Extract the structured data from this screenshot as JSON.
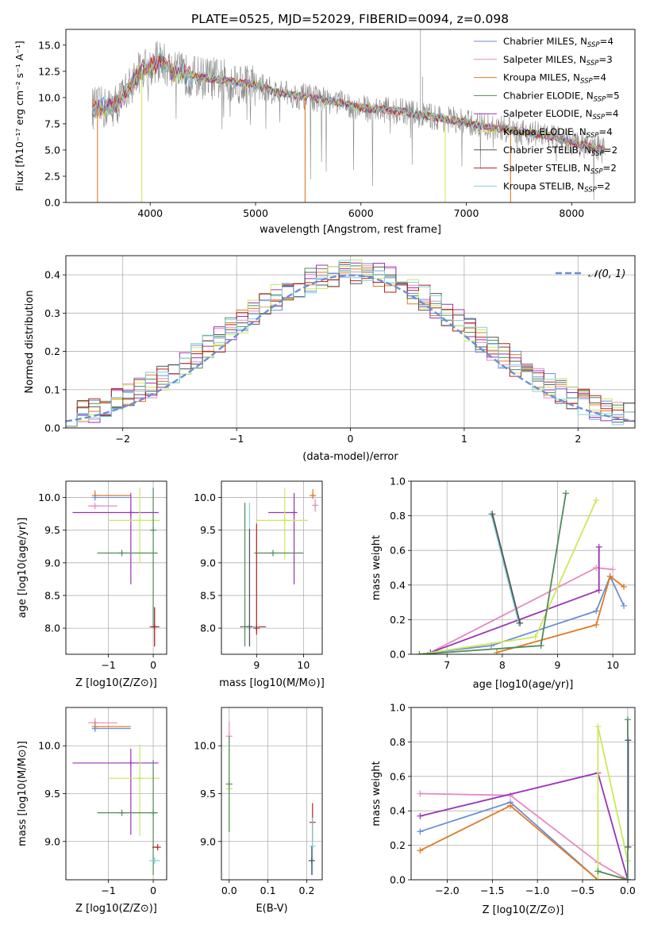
{
  "chart_data": [
    {
      "id": "spectrum",
      "type": "line",
      "title": "PLATE=0525, MJD=52029, FIBERID=0094, z=0.098",
      "xlabel": "wavelength [Angstrom, rest frame]",
      "ylabel": "Flux [fλ10⁻¹⁷ erg cm⁻² s⁻¹ A⁻¹]",
      "xlim": [
        3200,
        8600
      ],
      "ylim": [
        0,
        16.5
      ],
      "xticks": [
        4000,
        5000,
        6000,
        7000,
        8000
      ],
      "yticks": [
        0.0,
        2.5,
        5.0,
        7.5,
        10.0,
        12.5,
        15.0
      ],
      "legend_position": "top-right",
      "legend": [
        {
          "name": "Chabrier MILES",
          "ssp": "4",
          "color": "#6a8fd6"
        },
        {
          "name": "Salpeter MILES",
          "ssp": "3",
          "color": "#e58ac0"
        },
        {
          "name": "Kroupa MILES",
          "ssp": "4",
          "color": "#e07b23"
        },
        {
          "name": "Chabrier ELODIE",
          "ssp": "5",
          "color": "#4f8a5a"
        },
        {
          "name": "Salpeter ELODIE",
          "ssp": "4",
          "color": "#9a32b4"
        },
        {
          "name": "Kroupa ELODIE",
          "ssp": "4",
          "color": "#cde85a"
        },
        {
          "name": "Chabrier STELIB",
          "ssp": "2",
          "color": "#555555"
        },
        {
          "name": "Salpeter STELIB",
          "ssp": "2",
          "color": "#b22222"
        },
        {
          "name": "Kroupa STELIB",
          "ssp": "2",
          "color": "#7fd3dc"
        }
      ],
      "continuum": {
        "x": [
          3450,
          3600,
          3700,
          3800,
          3900,
          4000,
          4100,
          4200,
          4400,
          4600,
          4800,
          5000,
          5200,
          5500,
          5800,
          6000,
          6300,
          6600,
          6900,
          7200,
          7500,
          7800,
          8000,
          8300
        ],
        "y": [
          9.0,
          9.0,
          9.5,
          11.0,
          12.5,
          13.0,
          13.5,
          12.5,
          12.0,
          11.8,
          11.5,
          11.2,
          10.5,
          10.0,
          9.5,
          9.0,
          8.8,
          8.3,
          7.8,
          7.2,
          6.8,
          6.3,
          5.8,
          5.0
        ]
      }
    },
    {
      "id": "residuals",
      "type": "histogram",
      "title": "",
      "xlabel": "(data-model)/error",
      "ylabel": "Normed distribution",
      "xlim": [
        -2.5,
        2.5
      ],
      "ylim": [
        0,
        0.45
      ],
      "xticks": [
        -2,
        -1,
        0,
        1,
        2
      ],
      "yticks": [
        0.0,
        0.1,
        0.2,
        0.3,
        0.4
      ],
      "reference_curve": {
        "name": "𝒩(0, 1)",
        "mean": 0,
        "sigma": 1,
        "color": "#6a8fd6"
      },
      "legend_position": "top-right"
    },
    {
      "id": "age-vs-Z",
      "type": "errorbar",
      "xlabel": "Z [log10(Z/Z⊙)]",
      "ylabel": "age  [log10(age/yr)]",
      "xlim": [
        -1.95,
        0.3
      ],
      "ylim": [
        7.6,
        10.25
      ],
      "xticks": [
        -1,
        0
      ],
      "yticks": [
        8.0,
        8.5,
        9.0,
        9.5,
        10.0
      ],
      "points": [
        {
          "x": -1.3,
          "y": 10.03,
          "xerr": [
            0.0,
            0.8
          ],
          "yerr": [
            0.05,
            0.08
          ],
          "color": "#e07b23"
        },
        {
          "x": -1.3,
          "y": 10.0,
          "xerr": [
            0.0,
            0.8
          ],
          "yerr": [
            0.03,
            0.03
          ],
          "color": "#6a8fd6"
        },
        {
          "x": -1.3,
          "y": 9.87,
          "xerr": [
            0.15,
            0.5
          ],
          "yerr": [
            0.0,
            0.0
          ],
          "color": "#e58ac0"
        },
        {
          "x": -0.5,
          "y": 9.77,
          "xerr": [
            1.3,
            0.62
          ],
          "yerr": [
            1.1,
            0.3
          ],
          "color": "#9a32b4"
        },
        {
          "x": -0.3,
          "y": 9.65,
          "xerr": [
            0.7,
            0.45
          ],
          "yerr": [
            0.65,
            0.5
          ],
          "color": "#cde85a"
        },
        {
          "x": -0.7,
          "y": 9.15,
          "xerr": [
            0.55,
            0.8
          ],
          "yerr": [
            0.0,
            0.0
          ],
          "color": "#4f8a5a"
        },
        {
          "x": 0.0,
          "y": 9.5,
          "xerr": [
            0.0,
            0.0
          ],
          "yerr": [
            1.5,
            0.65
          ],
          "color": "#4f8a5a"
        },
        {
          "x": 0.03,
          "y": 8.02,
          "xerr": [
            0.12,
            0.12
          ],
          "yerr": [
            0.3,
            0.3
          ],
          "color": "#7fd3dc"
        },
        {
          "x": 0.03,
          "y": 8.02,
          "xerr": [
            0.1,
            0.1
          ],
          "yerr": [
            0.3,
            0.3
          ],
          "color": "#b22222"
        }
      ]
    },
    {
      "id": "age-vs-mass",
      "type": "errorbar",
      "xlabel": "mass [log10(M/M⊙)]",
      "ylabel": "",
      "xlim": [
        8.25,
        10.4
      ],
      "ylim": [
        7.6,
        10.25
      ],
      "xticks": [
        9,
        10
      ],
      "yticks": [
        8.0,
        8.5,
        9.0,
        9.5,
        10.0
      ],
      "points": [
        {
          "x": 10.2,
          "y": 10.03,
          "xerr": [
            0.05,
            0.05
          ],
          "yerr": [
            0.05,
            0.1
          ],
          "color": "#e07b23"
        },
        {
          "x": 10.25,
          "y": 9.88,
          "xerr": [
            0.05,
            0.05
          ],
          "yerr": [
            0.1,
            0.1
          ],
          "color": "#e58ac0"
        },
        {
          "x": 9.8,
          "y": 9.77,
          "xerr": [
            0.55,
            0.0
          ],
          "yerr": [
            1.1,
            0.3
          ],
          "color": "#9a32b4"
        },
        {
          "x": 9.6,
          "y": 9.65,
          "xerr": [
            0.6,
            0.5
          ],
          "yerr": [
            0.6,
            0.5
          ],
          "color": "#cde85a"
        },
        {
          "x": 9.35,
          "y": 9.15,
          "xerr": [
            0.4,
            0.65
          ],
          "yerr": [
            0.0,
            0.0
          ],
          "color": "#4f8a5a"
        },
        {
          "x": 8.85,
          "y": 8.02,
          "xerr": [
            0.2,
            0.35
          ],
          "yerr": [
            0.0,
            0.0
          ],
          "color": "#b22222"
        },
        {
          "x": 8.85,
          "y": 8.02,
          "xerr": [
            0.15,
            0.2
          ],
          "yerr": [
            0.3,
            1.9
          ],
          "color": "#7fd3dc"
        },
        {
          "x": 8.75,
          "y": 8.02,
          "xerr": [
            0.0,
            0.0
          ],
          "yerr": [
            0.3,
            1.9
          ],
          "color": "#4f8a5a"
        },
        {
          "x": 8.85,
          "y": 8.02,
          "xerr": [
            0.0,
            0.0
          ],
          "yerr": [
            0.3,
            1.5
          ],
          "color": "#555555"
        },
        {
          "x": 9.0,
          "y": 8.0,
          "xerr": [
            0.0,
            0.0
          ],
          "yerr": [
            0.1,
            1.6
          ],
          "color": "#b22222"
        }
      ]
    },
    {
      "id": "mass-weight-vs-age",
      "type": "line",
      "xlabel": "age  [log10(age/yr)]",
      "ylabel": "mass weight",
      "xlim": [
        6.35,
        10.4
      ],
      "ylim": [
        0,
        1.0
      ],
      "xticks": [
        7,
        8,
        9,
        10
      ],
      "yticks": [
        0.0,
        0.2,
        0.4,
        0.6,
        0.8,
        1.0
      ],
      "series": [
        {
          "color": "#6a8fd6",
          "x": [
            6.7,
            7.8,
            9.7,
            9.95,
            10.2
          ],
          "y": [
            0.01,
            0.05,
            0.25,
            0.45,
            0.28
          ]
        },
        {
          "color": "#e07b23",
          "x": [
            7.9,
            9.7,
            9.95,
            10.2
          ],
          "y": [
            0.01,
            0.17,
            0.45,
            0.39
          ]
        },
        {
          "color": "#e58ac0",
          "x": [
            6.7,
            9.7,
            10.0
          ],
          "y": [
            0.01,
            0.5,
            0.49
          ]
        },
        {
          "color": "#9a32b4",
          "x": [
            6.7,
            9.75,
            9.75
          ],
          "y": [
            0.01,
            0.37,
            0.62
          ]
        },
        {
          "color": "#cde85a",
          "x": [
            6.5,
            8.6,
            9.7
          ],
          "y": [
            0.0,
            0.1,
            0.89
          ]
        },
        {
          "color": "#4f8a5a",
          "x": [
            6.5,
            8.7,
            9.15
          ],
          "y": [
            0.0,
            0.05,
            0.93
          ]
        },
        {
          "color": "#7fd3dc",
          "x": [
            7.8,
            8.3
          ],
          "y": [
            0.81,
            0.18
          ]
        },
        {
          "color": "#555555",
          "x": [
            7.82,
            8.32
          ],
          "y": [
            0.81,
            0.18
          ]
        }
      ]
    },
    {
      "id": "mass-vs-Z",
      "type": "errorbar",
      "xlabel": "Z [log10(Z/Z⊙)]",
      "ylabel": "mass [log10(M/M⊙)]",
      "xlim": [
        -1.95,
        0.3
      ],
      "ylim": [
        8.6,
        10.4
      ],
      "xticks": [
        -1,
        0
      ],
      "yticks": [
        9.0,
        9.5,
        10.0
      ],
      "points": [
        {
          "x": -1.3,
          "y": 10.24,
          "xerr": [
            0.15,
            0.5
          ],
          "yerr": [
            0.05,
            0.05
          ],
          "color": "#e58ac0"
        },
        {
          "x": -1.3,
          "y": 10.2,
          "xerr": [
            0.0,
            0.8
          ],
          "yerr": [
            0.05,
            0.05
          ],
          "color": "#e07b23"
        },
        {
          "x": -1.3,
          "y": 10.18,
          "xerr": [
            0.0,
            0.8
          ],
          "yerr": [
            0.03,
            0.03
          ],
          "color": "#6a8fd6"
        },
        {
          "x": -0.5,
          "y": 9.82,
          "xerr": [
            1.3,
            0.62
          ],
          "yerr": [
            0.75,
            0.15
          ],
          "color": "#9a32b4"
        },
        {
          "x": -0.3,
          "y": 9.66,
          "xerr": [
            0.7,
            0.45
          ],
          "yerr": [
            0.6,
            0.35
          ],
          "color": "#cde85a"
        },
        {
          "x": -0.7,
          "y": 9.3,
          "xerr": [
            0.55,
            0.8
          ],
          "yerr": [
            0.0,
            0.0
          ],
          "color": "#4f8a5a"
        },
        {
          "x": 0.0,
          "y": 9.3,
          "xerr": [
            0.0,
            0.0
          ],
          "yerr": [
            0.65,
            0.55
          ],
          "color": "#4f8a5a"
        },
        {
          "x": 0.1,
          "y": 8.94,
          "xerr": [
            0.12,
            0.0
          ],
          "yerr": [
            0.0,
            0.0
          ],
          "color": "#b22222"
        },
        {
          "x": 0.03,
          "y": 8.8,
          "xerr": [
            0.12,
            0.12
          ],
          "yerr": [
            0.03,
            0.03
          ],
          "color": "#7fd3dc"
        }
      ]
    },
    {
      "id": "mass-vs-EBV",
      "type": "errorbar",
      "xlabel": "E(B-V)",
      "ylabel": "",
      "xlim": [
        -0.02,
        0.24
      ],
      "ylim": [
        8.6,
        10.4
      ],
      "xticks": [
        0.0,
        0.1,
        0.2
      ],
      "yticks": [
        9.0,
        9.5,
        10.0
      ],
      "points": [
        {
          "x": 0.0,
          "y": 10.1,
          "xerr": [
            0.0,
            0.0
          ],
          "yerr": [
            0.15,
            0.15
          ],
          "color": "#e58ac0"
        },
        {
          "x": 0.0,
          "y": 9.55,
          "xerr": [
            0.0,
            0.0
          ],
          "yerr": [
            0.45,
            0.45
          ],
          "color": "#cde85a"
        },
        {
          "x": 0.0,
          "y": 9.6,
          "xerr": [
            0.0,
            0.0
          ],
          "yerr": [
            0.5,
            0.5
          ],
          "color": "#4f8a5a"
        },
        {
          "x": 0.215,
          "y": 9.2,
          "xerr": [
            0.0,
            0.0
          ],
          "yerr": [
            0.2,
            0.2
          ],
          "color": "#b22222"
        },
        {
          "x": 0.215,
          "y": 8.95,
          "xerr": [
            0.0,
            0.0
          ],
          "yerr": [
            0.3,
            0.3
          ],
          "color": "#7fd3dc"
        },
        {
          "x": 0.213,
          "y": 8.8,
          "xerr": [
            0.0,
            0.0
          ],
          "yerr": [
            0.15,
            0.15
          ],
          "color": "#555555"
        }
      ]
    },
    {
      "id": "mass-weight-vs-Z",
      "type": "line",
      "xlabel": "Z [log10(Z/Z⊙)]",
      "ylabel": "mass weight",
      "xlim": [
        -2.4,
        0.08
      ],
      "ylim": [
        0,
        1.0
      ],
      "xticks": [
        -2.0,
        -1.5,
        -1.0,
        -0.5,
        0.0
      ],
      "yticks": [
        0.0,
        0.2,
        0.4,
        0.6,
        0.8,
        1.0
      ],
      "series": [
        {
          "color": "#6a8fd6",
          "x": [
            -2.3,
            -1.3,
            -0.33,
            0.0
          ],
          "y": [
            0.28,
            0.45,
            0.0,
            0.0
          ]
        },
        {
          "color": "#e07b23",
          "x": [
            -2.3,
            -1.3,
            -0.33,
            0.0
          ],
          "y": [
            0.17,
            0.43,
            0.0,
            0.0
          ]
        },
        {
          "color": "#e58ac0",
          "x": [
            -2.3,
            -1.3,
            -0.33,
            0.0
          ],
          "y": [
            0.5,
            0.49,
            0.1,
            0.0
          ]
        },
        {
          "color": "#9a32b4",
          "x": [
            -2.3,
            -0.33,
            0.0
          ],
          "y": [
            0.37,
            0.62,
            0.0
          ]
        },
        {
          "color": "#cde85a",
          "x": [
            -0.33,
            -0.33,
            0.0
          ],
          "y": [
            0.0,
            0.89,
            0.11
          ]
        },
        {
          "color": "#4f8a5a",
          "x": [
            -0.33,
            0.0,
            0.0
          ],
          "y": [
            0.05,
            0.0,
            0.93
          ]
        },
        {
          "color": "#7fd3dc",
          "x": [
            0.0,
            0.0
          ],
          "y": [
            0.81,
            0.19
          ]
        },
        {
          "color": "#555555",
          "x": [
            0.005,
            0.005
          ],
          "y": [
            0.81,
            0.19
          ]
        }
      ]
    }
  ]
}
